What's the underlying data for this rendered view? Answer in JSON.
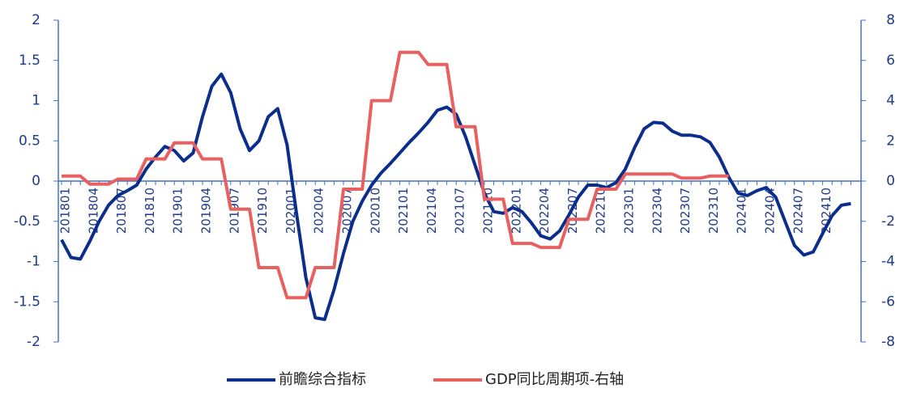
{
  "chart_data": {
    "type": "line",
    "categories": [
      "201801",
      null,
      null,
      "201804",
      null,
      null,
      "201807",
      null,
      null,
      "201810",
      null,
      null,
      "201901",
      null,
      null,
      "201904",
      null,
      null,
      "201907",
      null,
      null,
      "201910",
      null,
      null,
      "202001",
      null,
      null,
      "202004",
      null,
      null,
      "202007",
      null,
      null,
      "202010",
      null,
      null,
      "202101",
      null,
      null,
      "202104",
      null,
      null,
      "202107",
      null,
      null,
      "202110",
      null,
      null,
      "202201",
      null,
      null,
      "202204",
      null,
      null,
      "202207",
      null,
      null,
      "202210",
      null,
      null,
      "202301",
      null,
      null,
      "202304",
      null,
      null,
      "202307",
      null,
      null,
      "202310",
      null,
      null,
      "202401",
      null,
      null,
      "202404",
      null,
      null,
      "202407",
      null,
      null,
      "202410",
      null,
      null,
      null
    ],
    "series": [
      {
        "name": "前瞻综合指标",
        "color": "#0b2e8c",
        "values": [
          -0.73,
          -0.95,
          -0.97,
          -0.75,
          -0.5,
          -0.3,
          -0.18,
          -0.12,
          -0.05,
          0.15,
          0.3,
          0.43,
          0.38,
          0.25,
          0.35,
          0.8,
          1.18,
          1.33,
          1.1,
          0.65,
          0.38,
          0.5,
          0.8,
          0.9,
          0.45,
          -0.4,
          -1.2,
          -1.7,
          -1.72,
          -1.35,
          -0.9,
          -0.5,
          -0.25,
          -0.05,
          0.1,
          0.22,
          0.35,
          0.48,
          0.6,
          0.73,
          0.88,
          0.92,
          0.83,
          0.55,
          0.2,
          -0.15,
          -0.38,
          -0.4,
          -0.33,
          -0.38,
          -0.52,
          -0.68,
          -0.72,
          -0.62,
          -0.42,
          -0.2,
          -0.05,
          -0.05,
          -0.08,
          -0.02,
          0.15,
          0.42,
          0.65,
          0.73,
          0.72,
          0.62,
          0.57,
          0.57,
          0.55,
          0.48,
          0.3,
          0.05,
          -0.15,
          -0.18,
          -0.12,
          -0.08,
          -0.2,
          -0.5,
          -0.8,
          -0.92,
          -0.88,
          -0.65,
          -0.43,
          -0.3,
          -0.28
        ]
      },
      {
        "name": "GDP同比周期项-右轴",
        "color": "#e8605f",
        "axis": "y2",
        "values": [
          0.25,
          0.25,
          0.25,
          -0.15,
          -0.15,
          -0.15,
          0.1,
          0.1,
          0.1,
          1.1,
          1.1,
          1.1,
          1.9,
          1.9,
          1.9,
          1.1,
          1.1,
          1.1,
          -1.4,
          -1.4,
          -1.4,
          -4.3,
          -4.3,
          -4.3,
          -5.8,
          -5.8,
          -5.8,
          -4.3,
          -4.3,
          -4.3,
          -0.4,
          -0.4,
          -0.4,
          4.0,
          4.0,
          4.0,
          6.4,
          6.4,
          6.4,
          5.8,
          5.8,
          5.8,
          2.7,
          2.7,
          2.7,
          -0.9,
          -0.9,
          -0.9,
          -3.1,
          -3.1,
          -3.1,
          -3.3,
          -3.3,
          -3.3,
          -1.9,
          -1.9,
          -1.9,
          -0.4,
          -0.4,
          -0.4,
          0.35,
          0.35,
          0.35,
          0.35,
          0.35,
          0.35,
          0.15,
          0.15,
          0.15,
          0.25,
          0.25,
          0.25,
          null,
          null,
          null,
          null,
          null,
          null,
          null,
          null,
          null,
          null,
          null,
          null,
          null
        ]
      }
    ],
    "ylim": [
      -2,
      2
    ],
    "yticks": [
      2,
      1.5,
      1,
      0.5,
      0,
      -0.5,
      -1,
      -1.5,
      -2
    ],
    "y2lim": [
      -8,
      8
    ],
    "y2ticks": [
      8,
      6,
      4,
      2,
      0,
      -2,
      -4,
      -6,
      -8
    ],
    "axis_color": "#4472c4"
  }
}
